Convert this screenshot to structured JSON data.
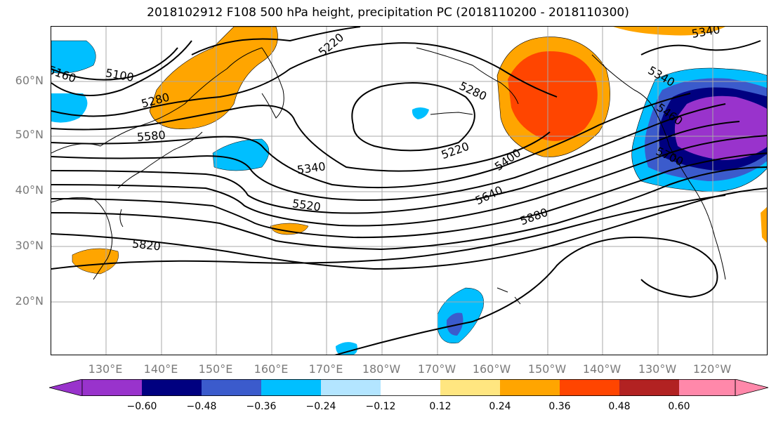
{
  "title": "2018102912 F108 500 hPa height, precipitation PC (2018110200 - 2018110300)",
  "latitude_labels": [
    "60°N",
    "50°N",
    "40°N",
    "30°N",
    "20°N"
  ],
  "longitude_labels": [
    "130°E",
    "140°E",
    "150°E",
    "160°E",
    "170°E",
    "180°W",
    "170°W",
    "160°W",
    "150°W",
    "140°W",
    "130°W",
    "120°W"
  ],
  "contour_labels": [
    "5160",
    "5100",
    "5220",
    "5280",
    "5580",
    "5340",
    "5520",
    "5820",
    "5340",
    "5280",
    "5220",
    "5400",
    "5640",
    "5880",
    "5340",
    "5460",
    "5700",
    "5460"
  ],
  "colorbar": {
    "ticks": [
      "−0.60",
      "−0.48",
      "−0.36",
      "−0.24",
      "−0.12",
      "0.12",
      "0.24",
      "0.36",
      "0.48",
      "0.60"
    ],
    "colors": [
      "#9933cc",
      "#000080",
      "#3b5bcc",
      "#00bfff",
      "#b3e5ff",
      "#ffffff",
      "#ffe680",
      "#ffa500",
      "#ff4500",
      "#b22222",
      "#ff88aa"
    ]
  },
  "colors": {
    "positive_high": "#ff4500",
    "positive_mid": "#ffa500",
    "positive_low": "#ffe680",
    "negative_low": "#b3e5ff",
    "negative_mid": "#00bfff",
    "negative_strong": "#3b5bcc",
    "negative_stronger": "#000080",
    "negative_extreme": "#9933cc"
  }
}
